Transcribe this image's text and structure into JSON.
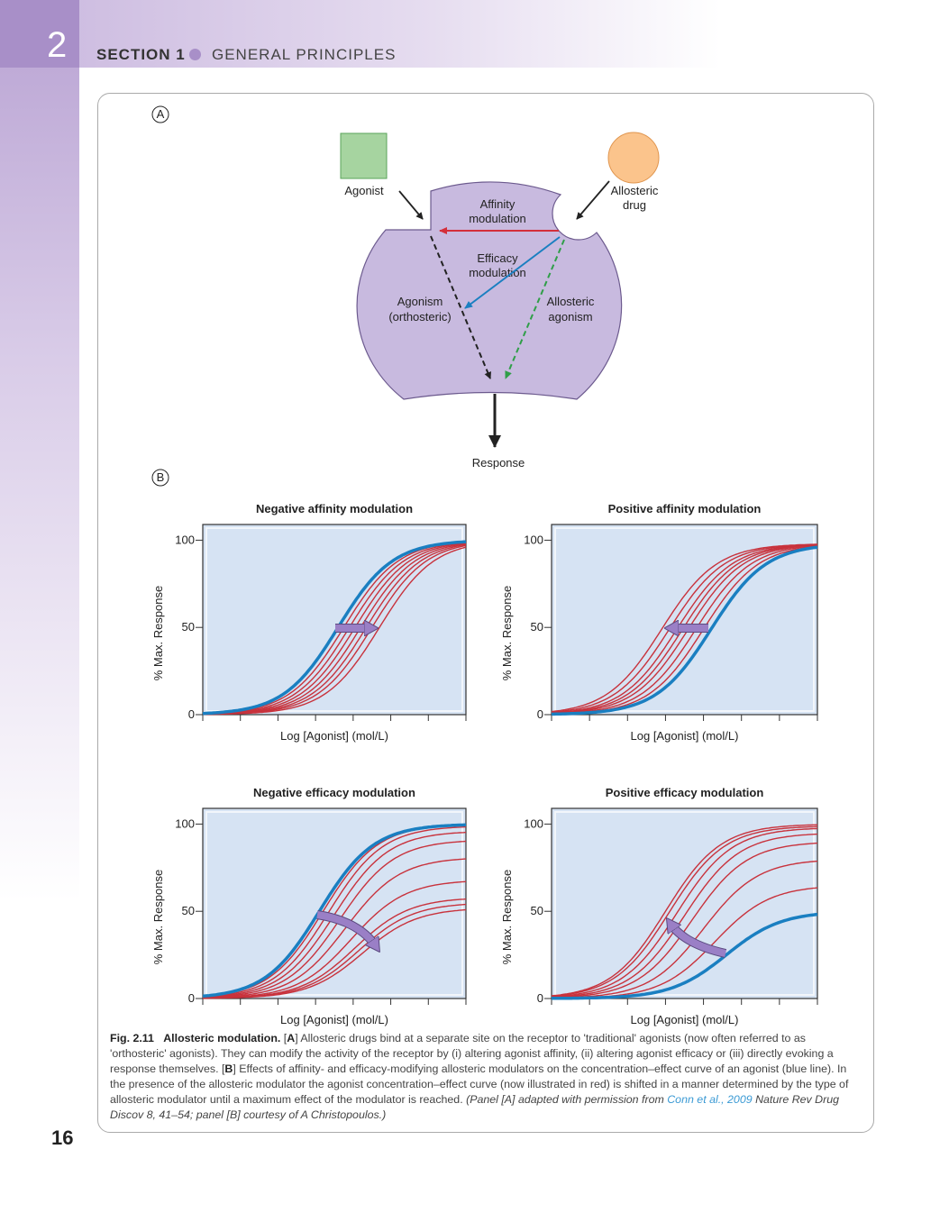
{
  "header": {
    "chapter": "2",
    "section": "SECTION 1",
    "title": "GENERAL PRINCIPLES"
  },
  "page_number": "16",
  "panel_a": {
    "label": "A",
    "agonist": "Agonist",
    "allosteric_drug": [
      "Allosteric",
      "drug"
    ],
    "affinity_modulation": [
      "Affinity",
      "modulation"
    ],
    "efficacy_modulation": [
      "Efficacy",
      "modulation"
    ],
    "agonism": [
      "Agonism",
      "(orthosteric)"
    ],
    "allosteric_agonism": [
      "Allosteric",
      "agonism"
    ],
    "response": "Response"
  },
  "panel_b": {
    "label": "B"
  },
  "chart_data": [
    {
      "type": "line",
      "title": "Negative affinity modulation",
      "ylabel": "% Max. Response",
      "xlabel": "Log [Agonist] (mol/L)",
      "xlim": [
        0,
        7
      ],
      "xticks": [
        0,
        1,
        2,
        3,
        4,
        5,
        6,
        7
      ],
      "ylim": [
        0,
        109
      ],
      "yticks": [
        0,
        50,
        100
      ],
      "hill": 0.6,
      "series": [
        {
          "color": "#c8323c",
          "ec50": 3.75,
          "emax": 100
        },
        {
          "color": "#c8323c",
          "ec50": 3.9,
          "emax": 100
        },
        {
          "color": "#c8323c",
          "ec50": 4.05,
          "emax": 100
        },
        {
          "color": "#c8323c",
          "ec50": 4.2,
          "emax": 100
        },
        {
          "color": "#c8323c",
          "ec50": 4.35,
          "emax": 100
        },
        {
          "color": "#c8323c",
          "ec50": 4.5,
          "emax": 100
        },
        {
          "color": "#c8323c",
          "ec50": 4.7,
          "emax": 100
        },
        {
          "color": "#1a7fc1",
          "ec50": 3.6,
          "emax": 100
        }
      ]
    },
    {
      "type": "line",
      "title": "Positive affinity modulation",
      "ylabel": "% Max. Response",
      "xlabel": "Log [Agonist] (mol/L)",
      "xlim": [
        0,
        7
      ],
      "xticks": [
        0,
        1,
        2,
        3,
        4,
        5,
        6,
        7
      ],
      "ylim": [
        0,
        109
      ],
      "yticks": [
        0,
        50,
        100
      ],
      "hill": 0.6,
      "series": [
        {
          "color": "#c8323c",
          "ec50": 2.9,
          "emax": 98
        },
        {
          "color": "#c8323c",
          "ec50": 3.1,
          "emax": 98
        },
        {
          "color": "#c8323c",
          "ec50": 3.3,
          "emax": 98
        },
        {
          "color": "#c8323c",
          "ec50": 3.45,
          "emax": 98
        },
        {
          "color": "#c8323c",
          "ec50": 3.6,
          "emax": 98
        },
        {
          "color": "#c8323c",
          "ec50": 3.8,
          "emax": 98
        },
        {
          "color": "#c8323c",
          "ec50": 4.0,
          "emax": 98
        },
        {
          "color": "#1a7fc1",
          "ec50": 4.2,
          "emax": 98
        }
      ]
    },
    {
      "type": "line",
      "title": "Negative efficacy modulation",
      "ylabel": "% Max. Response",
      "xlabel": "Log [Agonist] (mol/L)",
      "xlim": [
        0,
        7
      ],
      "xticks": [
        0,
        1,
        2,
        3,
        4,
        5,
        6,
        7
      ],
      "ylim": [
        0,
        109
      ],
      "yticks": [
        0,
        50,
        100
      ],
      "hill": 0.6,
      "series": [
        {
          "color": "#c8323c",
          "ec50": 3.2,
          "emax": 100
        },
        {
          "color": "#c8323c",
          "ec50": 3.35,
          "emax": 99
        },
        {
          "color": "#c8323c",
          "ec50": 3.5,
          "emax": 96
        },
        {
          "color": "#c8323c",
          "ec50": 3.65,
          "emax": 91
        },
        {
          "color": "#c8323c",
          "ec50": 3.8,
          "emax": 81
        },
        {
          "color": "#c8323c",
          "ec50": 3.95,
          "emax": 68
        },
        {
          "color": "#c8323c",
          "ec50": 4.05,
          "emax": 58
        },
        {
          "color": "#c8323c",
          "ec50": 4.15,
          "emax": 55
        },
        {
          "color": "#c8323c",
          "ec50": 4.25,
          "emax": 52
        },
        {
          "color": "#1a7fc1",
          "ec50": 3.1,
          "emax": 100
        }
      ]
    },
    {
      "type": "line",
      "title": "Positive efficacy modulation",
      "ylabel": "% Max. Response",
      "xlabel": "Log [Agonist] (mol/L)",
      "xlim": [
        0,
        7
      ],
      "xticks": [
        0,
        1,
        2,
        3,
        4,
        5,
        6,
        7
      ],
      "ylim": [
        0,
        109
      ],
      "yticks": [
        0,
        50,
        100
      ],
      "hill": 0.6,
      "series": [
        {
          "color": "#c8323c",
          "ec50": 4.3,
          "emax": 65
        },
        {
          "color": "#c8323c",
          "ec50": 4.0,
          "emax": 80
        },
        {
          "color": "#c8323c",
          "ec50": 3.7,
          "emax": 90
        },
        {
          "color": "#c8323c",
          "ec50": 3.5,
          "emax": 95
        },
        {
          "color": "#c8323c",
          "ec50": 3.3,
          "emax": 98
        },
        {
          "color": "#c8323c",
          "ec50": 3.1,
          "emax": 99
        },
        {
          "color": "#c8323c",
          "ec50": 3.0,
          "emax": 100
        },
        {
          "color": "#1a7fc1",
          "ec50": 4.6,
          "emax": 50
        }
      ]
    }
  ],
  "caption": {
    "label": "Fig. 2.11",
    "title": "Allosteric modulation.",
    "segments": [
      " [",
      "A",
      "] Allosteric drugs bind at a separate site on the receptor to 'traditional' agonists (now often referred to as 'orthosteric' agonists). They can modify the activity of the receptor by (i) altering agonist affinity, (ii) altering agonist efficacy or (iii) directly evoking a response themselves. [",
      "B",
      "] Effects of affinity- and efficacy-modifying allosteric modulators on the concentration–effect curve of an agonist (blue line). In the presence of the allosteric modulator the agonist concentration–effect curve (now illustrated in red) is shifted in a manner determined by the type of allosteric modulator until a maximum effect of the modulator is reached. "
    ],
    "credit_start": "(Panel [A] adapted with permission from ",
    "credit_link": "Conn et al., 2009",
    "credit_end": " Nature Rev Drug Discov 8, 41–54; panel [B] courtesy of A Christopoulos.)"
  }
}
